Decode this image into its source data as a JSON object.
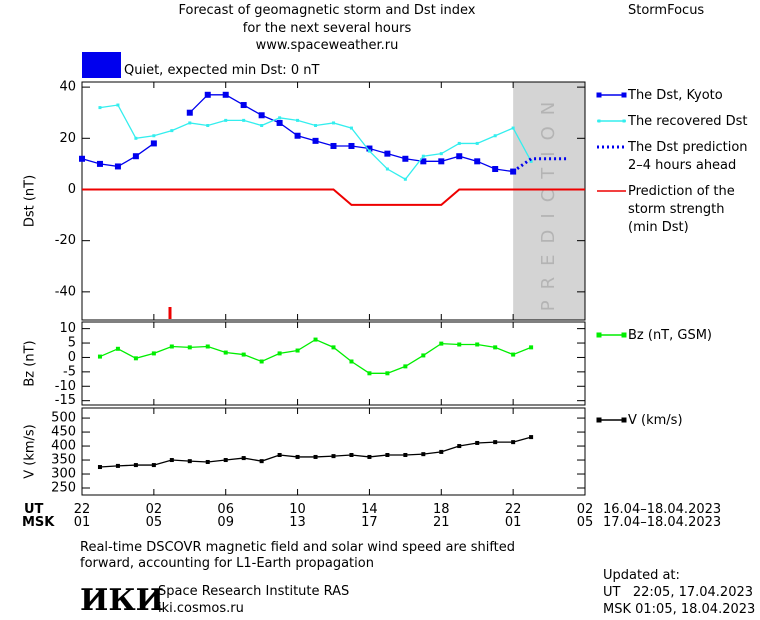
{
  "header": {
    "title": "Forecast of geomagnetic storm and Dst index",
    "subtitle": "for the next several hours",
    "site": "www.spaceweather.ru",
    "brand": "StormFocus",
    "status": {
      "label": "Quiet, expected min Dst: 0 nT",
      "color": "#0000ee"
    }
  },
  "chart_data": [
    {
      "type": "line",
      "ylabel": "Dst (nT)",
      "ylim": [
        -51,
        42
      ],
      "yticks": [
        -40,
        -20,
        0,
        20,
        40
      ],
      "shade": {
        "from": 24,
        "to": 28,
        "label": "PREDICTION",
        "color": "#d4d4d4"
      },
      "series": [
        {
          "name": "The Dst, Kyoto",
          "color": "#0000ee",
          "marker": "square",
          "style": "solid",
          "x": [
            0,
            1,
            2,
            3,
            4,
            5,
            6,
            7,
            8,
            9,
            10,
            11,
            12,
            13,
            14,
            15,
            16,
            17,
            18,
            19,
            20,
            21,
            22,
            23,
            24
          ],
          "values": [
            12,
            10,
            9,
            13,
            18,
            null,
            30,
            37,
            37,
            33,
            29,
            26,
            21,
            19,
            17,
            17,
            16,
            14,
            12,
            11,
            11,
            13,
            11,
            8,
            7
          ]
        },
        {
          "name": "The recovered Dst",
          "color": "#33eeee",
          "marker": "small-square",
          "style": "solid",
          "x": [
            1,
            2,
            3,
            4,
            5,
            6,
            7,
            8,
            9,
            10,
            11,
            12,
            13,
            14,
            15,
            16,
            17,
            18,
            19,
            20,
            21,
            22,
            23,
            24,
            25
          ],
          "values": [
            32,
            33,
            20,
            21,
            23,
            26,
            25,
            27,
            27,
            25,
            28,
            27,
            25,
            26,
            24,
            15,
            8,
            4,
            13,
            14,
            18,
            18,
            21,
            24,
            11
          ]
        },
        {
          "name": "The Dst prediction\n2–4 hours ahead",
          "color": "#0000ee",
          "marker": "none",
          "style": "dotted",
          "x": [
            24,
            25,
            26,
            27
          ],
          "values": [
            7,
            12,
            12,
            12
          ]
        },
        {
          "name": "Prediction of the\nstorm strength\n(min Dst)",
          "color": "#ee0000",
          "marker": "none",
          "style": "solid",
          "x": [
            0,
            14,
            15,
            20,
            21,
            28
          ],
          "values": [
            0,
            0,
            -6,
            -6,
            0,
            0
          ]
        }
      ]
    },
    {
      "type": "line",
      "ylabel": "Bz (nT)",
      "ylim": [
        -16.5,
        12.3
      ],
      "yticks": [
        -15,
        -10,
        -5,
        0,
        5,
        10
      ],
      "series": [
        {
          "name": "Bz (nT, GSM)",
          "color": "#00ee00",
          "marker": "square",
          "style": "solid",
          "x": [
            1,
            2,
            3,
            4,
            5,
            6,
            7,
            8,
            9,
            10,
            11,
            12,
            13,
            14,
            15,
            16,
            17,
            18,
            19,
            20,
            21,
            22,
            23,
            24,
            25
          ],
          "values": [
            0.3,
            3,
            -0.3,
            1.4,
            3.8,
            3.5,
            3.8,
            1.7,
            1,
            -1.4,
            1.4,
            2.4,
            6.2,
            3.5,
            -1.4,
            -5.5,
            -5.5,
            -3.1,
            0.7,
            4.8,
            4.5,
            4.5,
            3.5,
            1,
            3.5
          ]
        }
      ]
    },
    {
      "type": "line",
      "ylabel": "V (km/s)",
      "ylim": [
        225,
        536
      ],
      "yticks": [
        250,
        300,
        350,
        400,
        450,
        500
      ],
      "xlim": [
        0,
        28
      ],
      "xticks": [
        {
          "value": 0,
          "label": "22"
        },
        {
          "value": 4,
          "label": "02"
        },
        {
          "value": 8,
          "label": "06"
        },
        {
          "value": 12,
          "label": "10"
        },
        {
          "value": 16,
          "label": "14"
        },
        {
          "value": 20,
          "label": "18"
        },
        {
          "value": 24,
          "label": "22"
        },
        {
          "value": 28,
          "label": "02"
        }
      ],
      "xlabel": "UT",
      "xrange": "16.04–18.04.2023",
      "x2ticks": [
        {
          "value": 0,
          "label": "01"
        },
        {
          "value": 4,
          "label": "05"
        },
        {
          "value": 8,
          "label": "09"
        },
        {
          "value": 12,
          "label": "13"
        },
        {
          "value": 16,
          "label": "17"
        },
        {
          "value": 20,
          "label": "21"
        },
        {
          "value": 24,
          "label": "01"
        },
        {
          "value": 28,
          "label": "05"
        }
      ],
      "x2label": "MSK",
      "x2range": "17.04–18.04.2023",
      "series": [
        {
          "name": "V (km/s)",
          "color": "#000000",
          "marker": "square",
          "style": "solid",
          "x": [
            1,
            2,
            3,
            4,
            5,
            6,
            7,
            8,
            9,
            10,
            11,
            12,
            13,
            14,
            15,
            16,
            17,
            18,
            19,
            20,
            21,
            22,
            23,
            24,
            25
          ],
          "values": [
            325,
            329,
            332,
            332,
            350,
            346,
            343,
            350,
            357,
            346,
            368,
            361,
            361,
            364,
            368,
            361,
            368,
            368,
            371,
            379,
            400,
            411,
            414,
            414,
            432
          ]
        }
      ]
    }
  ],
  "footer": {
    "note": "Real-time DSCOVR magnetic field and solar wind speed are shifted\nforward, accounting for L1-Earth propagation",
    "logo": "ИКИ",
    "institute": "Space Research Institute RAS",
    "url": "iki.cosmos.ru",
    "updated": "Updated at:",
    "updated_ut": "UT   22:05, 17.04.2023",
    "updated_msk": "MSK 01:05, 18.04.2023"
  }
}
